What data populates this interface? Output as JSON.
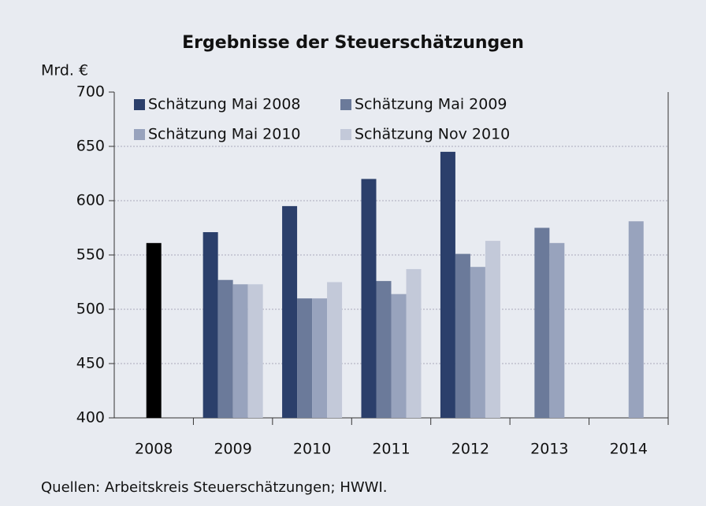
{
  "chart_data": {
    "type": "bar",
    "title": "Ergebnisse der Steuerschätzungen",
    "y_label": "Mrd. €",
    "source": "Quellen: Arbeitskreis Steuerschätzungen; HWWI.",
    "categories": [
      "2008",
      "2009",
      "2010",
      "2011",
      "2012",
      "2013",
      "2014"
    ],
    "series": [
      {
        "color": "#000000",
        "values": [
          561,
          null,
          null,
          null,
          null,
          null,
          null
        ]
      },
      {
        "name": "Schätzung Mai 2008",
        "color": "#2b3f6b",
        "values": [
          null,
          571,
          595,
          620,
          645,
          null,
          null
        ]
      },
      {
        "name": "Schätzung  Mai 2009",
        "color": "#6b7a9a",
        "values": [
          null,
          527,
          510,
          526,
          551,
          575,
          null
        ]
      },
      {
        "name": "Schätzung  Mai 2010",
        "color": "#98a3bd",
        "values": [
          null,
          523,
          510,
          514,
          539,
          561,
          581
        ]
      },
      {
        "name": "Schätzung Nov 2010",
        "color": "#c3c9d9",
        "values": [
          null,
          523,
          525,
          537,
          563,
          null,
          null
        ]
      }
    ],
    "ylim": [
      400,
      700
    ],
    "yticks": [
      400,
      450,
      500,
      550,
      600,
      650,
      700
    ],
    "grid": true,
    "legend": "upper left"
  }
}
